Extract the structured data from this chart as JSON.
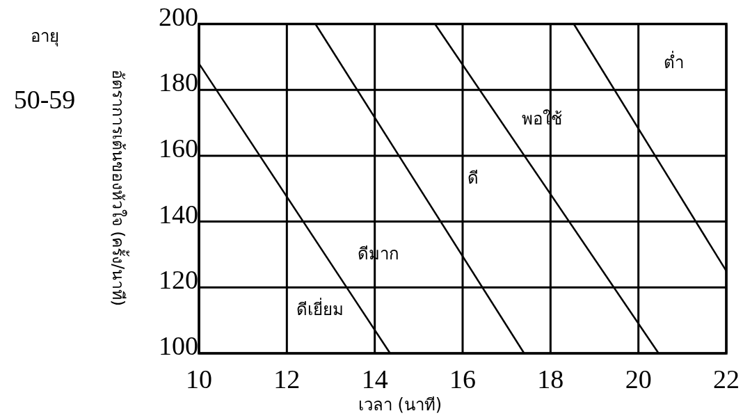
{
  "chart_data": {
    "type": "line",
    "xlabel": "เวลา (นาที)",
    "ylabel": "อัตราการเต้นของหัวใจ (ครั้ง/นาที)",
    "xlim": [
      10,
      22
    ],
    "ylim": [
      100,
      200
    ],
    "xticks": [
      10,
      12,
      14,
      16,
      18,
      20,
      22
    ],
    "yticks": [
      100,
      120,
      140,
      160,
      180,
      200
    ],
    "grid": true,
    "line_style": "solid",
    "marker": "none",
    "series": [
      {
        "color": "#000000",
        "x": [
          10,
          14.35
        ],
        "values": [
          188,
          100
        ]
      },
      {
        "color": "#000000",
        "x": [
          12.65,
          17.4
        ],
        "values": [
          200,
          100
        ]
      },
      {
        "color": "#000000",
        "x": [
          15.37,
          20.46
        ],
        "values": [
          200,
          100
        ]
      },
      {
        "color": "#000000",
        "x": [
          18.53,
          22
        ],
        "values": [
          200,
          125
        ]
      }
    ],
    "annotations": [
      "อายุ",
      "50-59",
      "ดีเยี่ยม",
      "ดีมาก",
      "ดี",
      "พอใช้",
      "ต่ำ"
    ]
  }
}
